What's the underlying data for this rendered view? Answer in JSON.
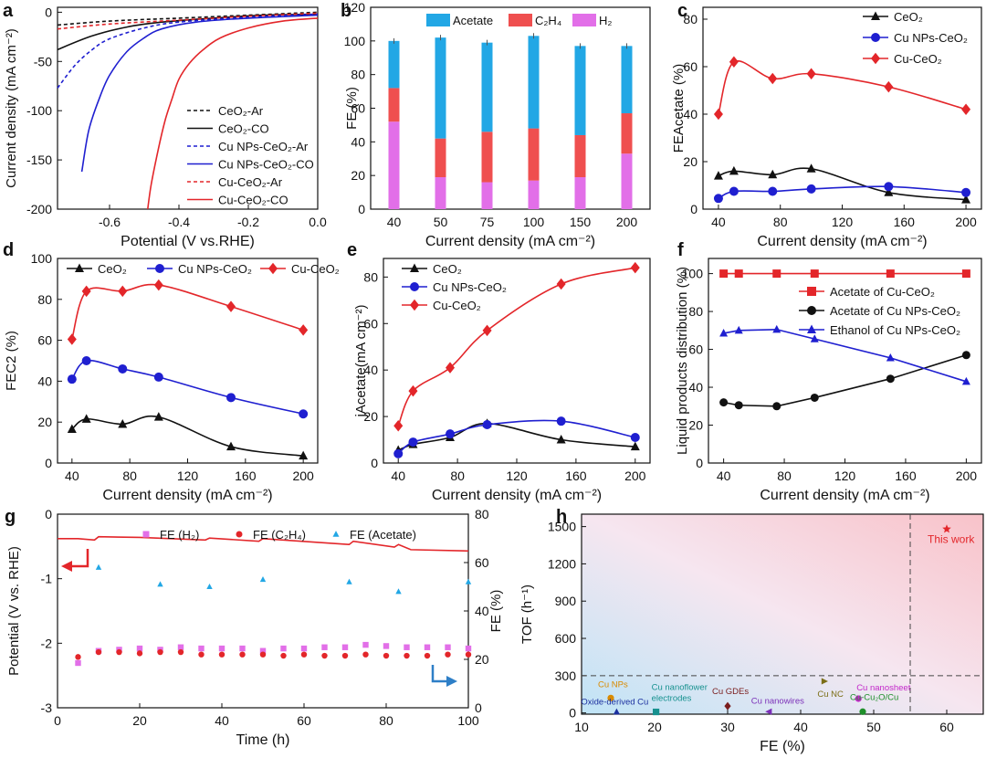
{
  "colors": {
    "black": "#111111",
    "blue": "#1f1fd0",
    "red": "#e3262a",
    "legend_blue": "#1e40e0",
    "pink": "#e26fe8",
    "cyan": "#22a7e5",
    "salmon": "#ef4f4f",
    "darkred": "#e0302a"
  },
  "chart_data": [
    {
      "id": "a",
      "panel_label": "a",
      "type": "line",
      "title": "",
      "xlabel": "Potential (V vs.RHE)",
      "ylabel": "Current density (mA cm⁻²)",
      "xlim": [
        -0.75,
        0.0
      ],
      "ylim": [
        -200,
        5
      ],
      "xticks": [
        "-0.6",
        "-0.4",
        "-0.2",
        "0.0"
      ],
      "yticks": [
        "0",
        "-50",
        "-100",
        "-150",
        "-200"
      ],
      "series": [
        {
          "name": "CeO₂-Ar",
          "style": "dashed",
          "color": "black",
          "points": [
            [
              -0.75,
              -13
            ],
            [
              -0.6,
              -9
            ],
            [
              -0.4,
              -6
            ],
            [
              -0.2,
              -3
            ],
            [
              0,
              0
            ]
          ]
        },
        {
          "name": "CeO₂-CO",
          "style": "solid",
          "color": "black",
          "points": [
            [
              -0.75,
              -38
            ],
            [
              -0.65,
              -24
            ],
            [
              -0.55,
              -15
            ],
            [
              -0.45,
              -10
            ],
            [
              -0.3,
              -6
            ],
            [
              -0.15,
              -3
            ],
            [
              0,
              -2
            ]
          ]
        },
        {
          "name": "Cu NPs-CeO₂-Ar",
          "style": "dashed",
          "color": "blue",
          "points": [
            [
              -0.75,
              -77
            ],
            [
              -0.7,
              -54
            ],
            [
              -0.65,
              -38
            ],
            [
              -0.6,
              -27
            ],
            [
              -0.5,
              -16
            ],
            [
              -0.4,
              -10
            ],
            [
              -0.2,
              -5
            ],
            [
              0,
              -2
            ]
          ]
        },
        {
          "name": "Cu NPs-CeO₂-CO",
          "style": "solid",
          "color": "blue",
          "points": [
            [
              -0.68,
              -162
            ],
            [
              -0.66,
              -120
            ],
            [
              -0.63,
              -88
            ],
            [
              -0.6,
              -64
            ],
            [
              -0.55,
              -40
            ],
            [
              -0.5,
              -26
            ],
            [
              -0.45,
              -17
            ],
            [
              -0.35,
              -10
            ],
            [
              -0.2,
              -6
            ],
            [
              0,
              -3
            ]
          ]
        },
        {
          "name": "Cu-CeO₂-Ar",
          "style": "dashed",
          "color": "red",
          "points": [
            [
              -0.75,
              -17
            ],
            [
              -0.6,
              -12
            ],
            [
              -0.4,
              -8
            ],
            [
              -0.2,
              -4
            ],
            [
              0,
              -1
            ]
          ]
        },
        {
          "name": "Cu-CeO₂-CO",
          "style": "solid",
          "color": "red",
          "points": [
            [
              -0.49,
              -200
            ],
            [
              -0.48,
              -175
            ],
            [
              -0.46,
              -140
            ],
            [
              -0.44,
              -110
            ],
            [
              -0.42,
              -88
            ],
            [
              -0.4,
              -68
            ],
            [
              -0.37,
              -52
            ],
            [
              -0.33,
              -38
            ],
            [
              -0.28,
              -26
            ],
            [
              -0.2,
              -16
            ],
            [
              -0.1,
              -9
            ],
            [
              0,
              -6
            ]
          ]
        }
      ]
    },
    {
      "id": "b",
      "panel_label": "b",
      "type": "bar",
      "title": "",
      "xlabel": "Current density (mA cm⁻²)",
      "ylabel": "FE (%)",
      "ylim": [
        0,
        120
      ],
      "yticks": [
        "0",
        "20",
        "40",
        "60",
        "80",
        "100",
        "120"
      ],
      "categories": [
        "40",
        "50",
        "75",
        "100",
        "150",
        "200"
      ],
      "series": [
        {
          "name": "H₂",
          "color": "pink",
          "values": [
            52,
            19,
            16,
            17,
            19,
            33
          ]
        },
        {
          "name": "C₂H₄",
          "color": "salmon",
          "values": [
            20,
            23,
            30,
            31,
            25,
            24
          ]
        },
        {
          "name": "Acetate",
          "color": "cyan",
          "values": [
            28,
            60,
            53,
            55,
            53,
            40
          ]
        }
      ]
    },
    {
      "id": "c",
      "panel_label": "c",
      "type": "line",
      "title": "",
      "xlabel": "Current density (mA cm⁻²)",
      "ylabel": "FEAcetate (%)",
      "xlim": [
        30,
        210
      ],
      "ylim": [
        0,
        85
      ],
      "xticks": [
        "40",
        "80",
        "120",
        "160",
        "200"
      ],
      "yticks": [
        "0",
        "20",
        "40",
        "60",
        "80"
      ],
      "series": [
        {
          "name": "CeO₂",
          "color": "black",
          "marker": "triangle",
          "x": [
            40,
            50,
            75,
            100,
            150,
            200
          ],
          "values": [
            14,
            16,
            14.5,
            17,
            7,
            4
          ]
        },
        {
          "name": "Cu NPs-CeO₂",
          "color": "blue",
          "marker": "circle",
          "x": [
            40,
            50,
            75,
            100,
            150,
            200
          ],
          "values": [
            4.5,
            7.5,
            7.5,
            8.5,
            9.5,
            7
          ]
        },
        {
          "name": "Cu-CeO₂",
          "color": "red",
          "marker": "diamond",
          "x": [
            40,
            50,
            75,
            100,
            150,
            200
          ],
          "values": [
            40,
            62,
            55,
            57,
            51.5,
            42
          ]
        }
      ]
    },
    {
      "id": "d",
      "panel_label": "d",
      "type": "line",
      "title": "",
      "xlabel": "Current density (mA cm⁻²)",
      "ylabel": "FEC2 (%)",
      "xlim": [
        30,
        210
      ],
      "ylim": [
        0,
        100
      ],
      "xticks": [
        "40",
        "80",
        "120",
        "160",
        "200"
      ],
      "yticks": [
        "0",
        "20",
        "40",
        "60",
        "80",
        "100"
      ],
      "series": [
        {
          "name": "CeO₂",
          "color": "black",
          "marker": "triangle",
          "x": [
            40,
            50,
            75,
            100,
            150,
            200
          ],
          "values": [
            16.5,
            21.5,
            19,
            22.5,
            8,
            3.5
          ]
        },
        {
          "name": "Cu NPs-CeO₂",
          "color": "blue",
          "marker": "circle",
          "x": [
            40,
            50,
            75,
            100,
            150,
            200
          ],
          "values": [
            41,
            50,
            46,
            42,
            32,
            24
          ]
        },
        {
          "name": "Cu-CeO₂",
          "color": "red",
          "marker": "diamond",
          "x": [
            40,
            50,
            75,
            100,
            150,
            200
          ],
          "values": [
            60.5,
            84,
            84,
            87,
            76.5,
            65
          ]
        }
      ]
    },
    {
      "id": "e",
      "panel_label": "e",
      "type": "line",
      "title": "",
      "xlabel": "Current density (mA cm⁻²)",
      "ylabel": "jAcetate(mA cm⁻²)",
      "xlim": [
        30,
        210
      ],
      "ylim": [
        0,
        88
      ],
      "xticks": [
        "40",
        "80",
        "120",
        "160",
        "200"
      ],
      "yticks": [
        "0",
        "20",
        "40",
        "60",
        "80"
      ],
      "series": [
        {
          "name": "CeO₂",
          "color": "black",
          "marker": "triangle",
          "x": [
            40,
            50,
            75,
            100,
            150,
            200
          ],
          "values": [
            5.5,
            8,
            11,
            17,
            10,
            7
          ]
        },
        {
          "name": "Cu NPs-CeO₂",
          "color": "blue",
          "marker": "circle",
          "x": [
            40,
            50,
            75,
            100,
            150,
            200
          ],
          "values": [
            4,
            9,
            12.5,
            16.5,
            18,
            11
          ]
        },
        {
          "name": "Cu-CeO₂",
          "color": "red",
          "marker": "diamond",
          "x": [
            40,
            50,
            75,
            100,
            150,
            200
          ],
          "values": [
            16,
            31,
            41,
            57,
            77,
            84
          ]
        }
      ]
    },
    {
      "id": "f",
      "panel_label": "f",
      "type": "line",
      "title": "",
      "xlabel": "Current density (mA cm⁻²)",
      "ylabel": "Liquid products distribution (%)",
      "xlim": [
        30,
        210
      ],
      "ylim": [
        0,
        108
      ],
      "xticks": [
        "40",
        "80",
        "120",
        "160",
        "200"
      ],
      "yticks": [
        "0",
        "20",
        "40",
        "60",
        "80",
        "100"
      ],
      "series": [
        {
          "name": "Acetate of Cu-CeO₂",
          "color": "red",
          "marker": "square",
          "x": [
            40,
            50,
            75,
            100,
            150,
            200
          ],
          "values": [
            100,
            100,
            100,
            100,
            100,
            100
          ]
        },
        {
          "name": "Acetate of Cu NPs-CeO₂",
          "color": "black",
          "marker": "circle",
          "x": [
            40,
            50,
            75,
            100,
            150,
            200
          ],
          "values": [
            32,
            30.5,
            30,
            34.5,
            44.5,
            57
          ]
        },
        {
          "name": "Ethanol of Cu NPs-CeO₂",
          "color": "blue",
          "marker": "triangle",
          "x": [
            40,
            50,
            75,
            100,
            150,
            200
          ],
          "values": [
            68.5,
            70,
            70.5,
            65.5,
            55.5,
            43
          ]
        }
      ]
    },
    {
      "id": "g",
      "panel_label": "g",
      "type": "line",
      "title": "",
      "xlabel": "Time (h)",
      "ylabel": "Potential (V vs. RHE)",
      "y2label": "FE (%)",
      "xlim": [
        0,
        100
      ],
      "ylim": [
        -3,
        0
      ],
      "y2lim": [
        0,
        80
      ],
      "xticks": [
        "0",
        "20",
        "40",
        "60",
        "80",
        "100"
      ],
      "yticks": [
        "0",
        "-1",
        "-2",
        "-3"
      ],
      "y2ticks": [
        "0",
        "20",
        "40",
        "60",
        "80"
      ],
      "potential": {
        "name": "Potential",
        "color": "red",
        "points": [
          [
            0,
            -0.38
          ],
          [
            5,
            -0.38
          ],
          [
            9,
            -0.4
          ],
          [
            10,
            -0.35
          ],
          [
            20,
            -0.36
          ],
          [
            36,
            -0.4
          ],
          [
            37,
            -0.37
          ],
          [
            49,
            -0.42
          ],
          [
            50,
            -0.38
          ],
          [
            71,
            -0.47
          ],
          [
            72,
            -0.42
          ],
          [
            82,
            -0.51
          ],
          [
            83,
            -0.47
          ],
          [
            86,
            -0.55
          ],
          [
            100,
            -0.57
          ]
        ]
      },
      "series": [
        {
          "name": "FE (H₂)",
          "color": "pink",
          "marker": "square",
          "x": [
            5,
            10,
            15,
            20,
            25,
            30,
            35,
            40,
            45,
            50,
            55,
            60,
            65,
            70,
            75,
            80,
            85,
            90,
            95,
            100
          ],
          "values": [
            18.5,
            23.5,
            24,
            24.5,
            24,
            25,
            24.5,
            24.5,
            24.5,
            23.5,
            24.5,
            24.5,
            25,
            25,
            26,
            25.5,
            25,
            25,
            25,
            24.5
          ]
        },
        {
          "name": "FE (C₂H₄)",
          "color": "red",
          "marker": "circle",
          "x": [
            5,
            10,
            15,
            20,
            25,
            30,
            35,
            40,
            45,
            50,
            55,
            60,
            65,
            70,
            75,
            80,
            85,
            90,
            95,
            100
          ],
          "values": [
            21,
            23,
            23,
            22.5,
            23,
            23,
            22,
            22,
            22,
            22,
            21.5,
            22,
            21.5,
            21.5,
            22,
            21.5,
            21.5,
            21.5,
            22,
            22
          ]
        },
        {
          "name": "FE (Acetate)",
          "color": "cyan",
          "marker": "triangle",
          "x": [
            10,
            25,
            37,
            50,
            71,
            83,
            100
          ],
          "values": [
            58,
            51,
            50,
            53,
            52,
            48,
            52
          ]
        }
      ]
    },
    {
      "id": "h",
      "panel_label": "h",
      "type": "scatter",
      "title": "",
      "xlabel": "FE (%)",
      "ylabel": "TOF (h⁻¹)",
      "xlim": [
        10,
        65
      ],
      "ylim": [
        -10,
        1600
      ],
      "xticks": [
        "10",
        "20",
        "30",
        "40",
        "50",
        "60"
      ],
      "yticks": [
        "0",
        "300",
        "600",
        "900",
        "1200",
        "1500"
      ],
      "reference_lines": {
        "x": 55,
        "y": 300
      },
      "points": [
        {
          "label": "Cu NPs",
          "color": "#d98a00",
          "marker": "circle",
          "x": 14,
          "y": 120
        },
        {
          "label": "Oxide-derived Cu",
          "color": "#1b2f9f",
          "marker": "triangle",
          "x": 14.8,
          "y": 8
        },
        {
          "label": "Cu nanoflower electrodes",
          "color": "#17918f",
          "marker": "square",
          "x": 20.2,
          "y": 8
        },
        {
          "label": "Cu GDEs",
          "color": "#7a1d1d",
          "marker": "diamond",
          "x": 30,
          "y": 55
        },
        {
          "label": "Cu nanowires",
          "color": "#7b2fb8",
          "marker": "triangle-left",
          "x": 35.6,
          "y": 10
        },
        {
          "label": "Cu NC",
          "color": "#7b6e17",
          "marker": "triangle-right",
          "x": 43.3,
          "y": 255
        },
        {
          "label": "Cu nanosheet",
          "color": "#c327c9",
          "marker": "circle",
          "x": 47.9,
          "y": 115
        },
        {
          "label": "Cu-Cu₂O/Cu",
          "color": "#1e8f2a",
          "marker": "circle",
          "x": 48.5,
          "y": 10
        },
        {
          "label": "This work",
          "color": "#e3262a",
          "marker": "star",
          "x": 60,
          "y": 1480
        }
      ]
    }
  ]
}
